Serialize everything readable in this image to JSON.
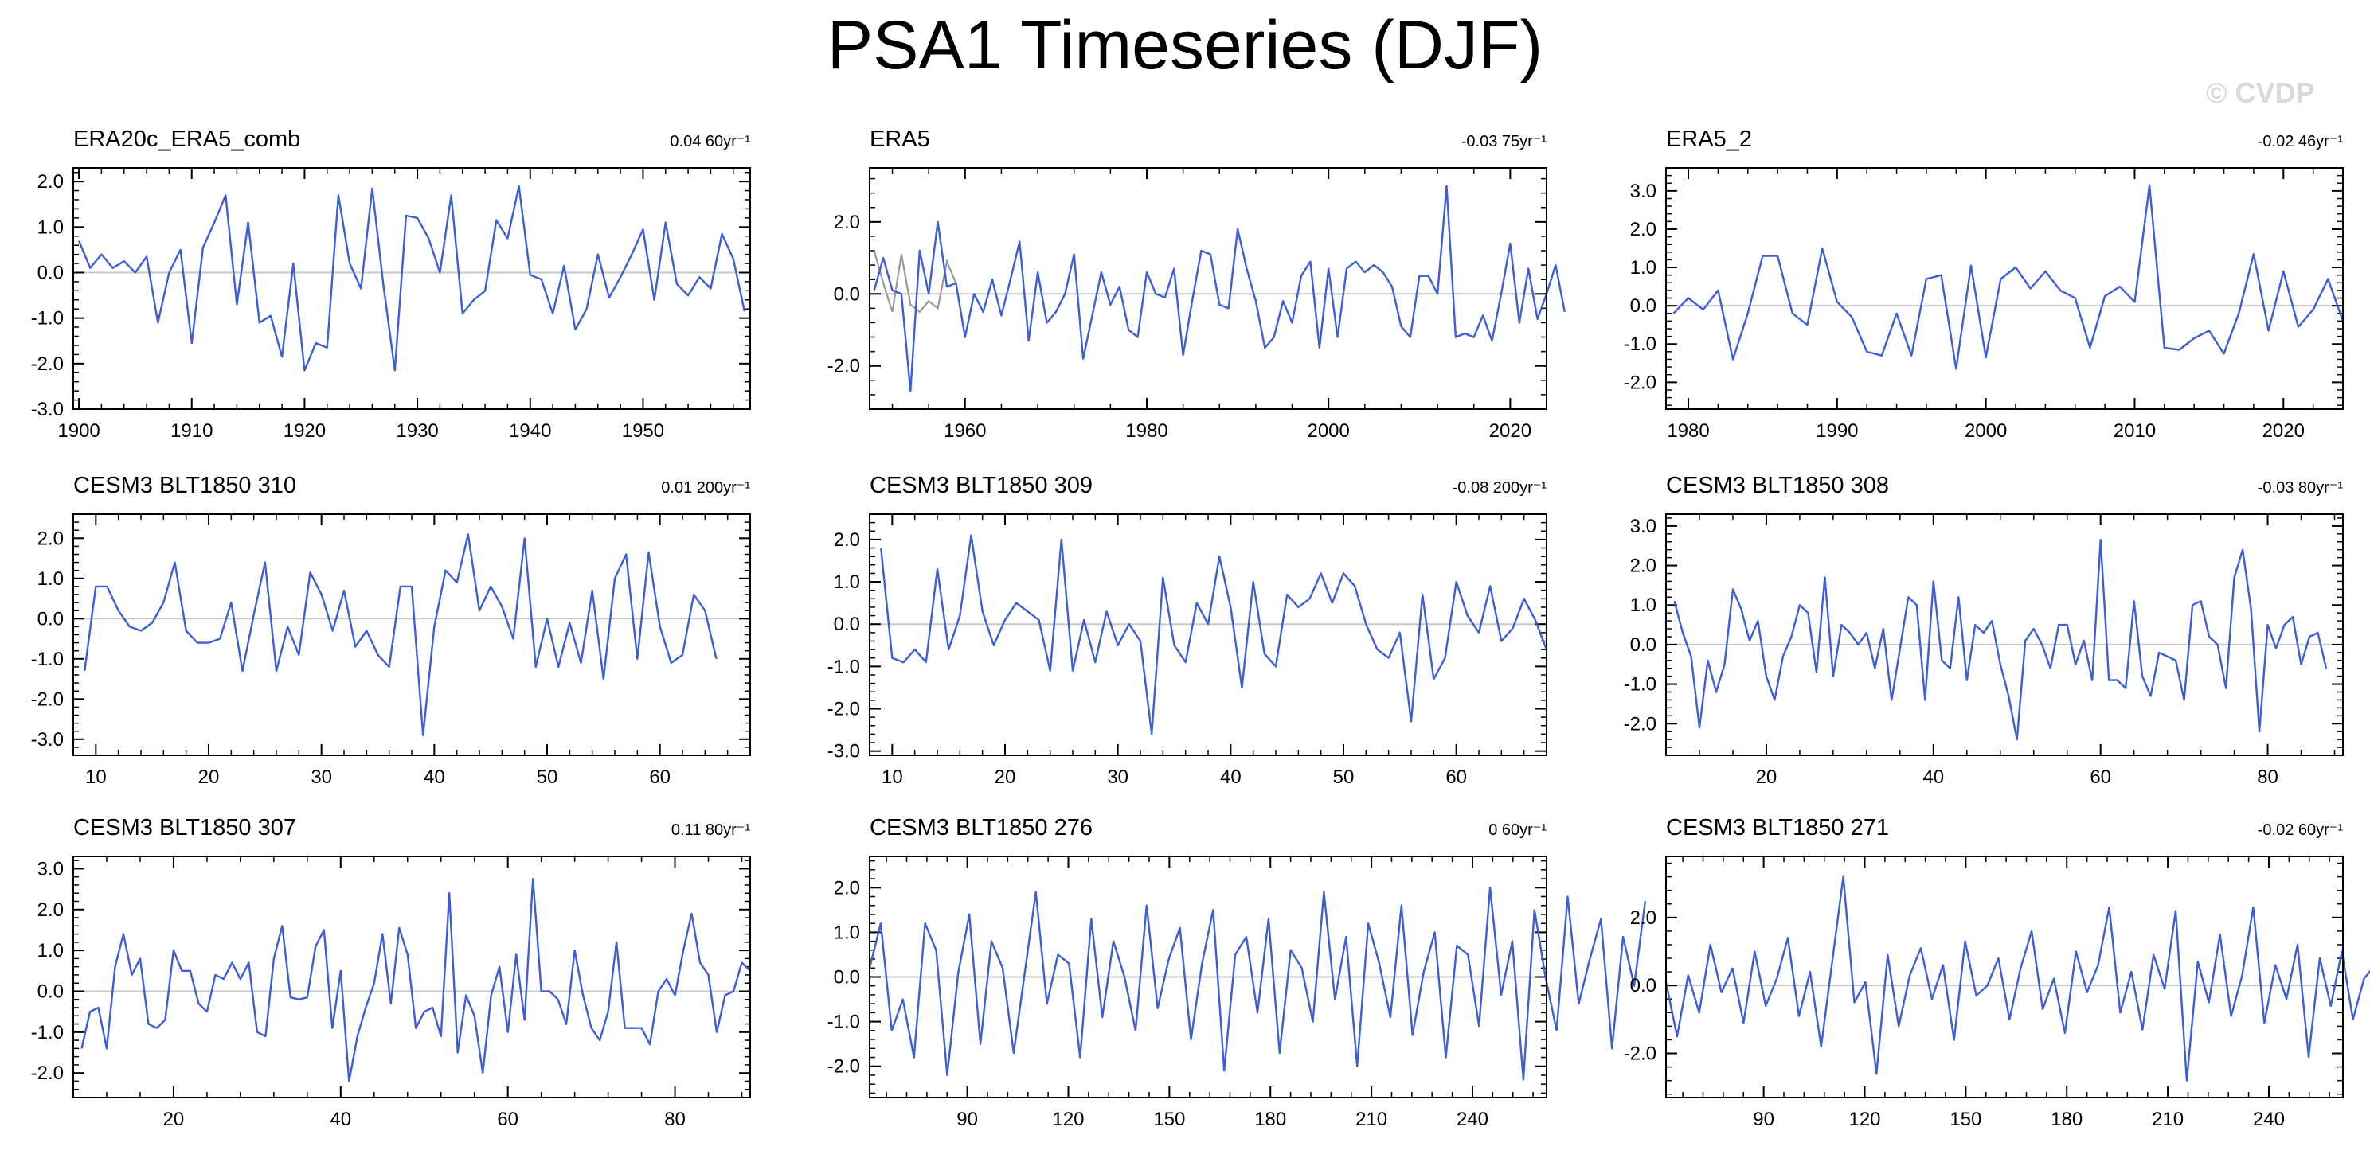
{
  "page": {
    "title": "PSA1 Timeseries (DJF)",
    "watermark": "© CVDP"
  },
  "colors": {
    "series": "#3d5ed8",
    "secondary_series": "#9a9a9a",
    "zero_line": "#c8c8c8",
    "frame": "#000000"
  },
  "chart_data": [
    {
      "type": "line",
      "title": "ERA20c_ERA5_comb",
      "trend_label": "0.04 60yr⁻¹",
      "xlim": [
        1899.5,
        1959.5
      ],
      "ylim": [
        -3.0,
        2.3
      ],
      "xticks": [
        1900,
        1910,
        1920,
        1930,
        1940,
        1950
      ],
      "yticks": [
        2.0,
        1.0,
        0.0,
        -1.0,
        -2.0,
        -3.0
      ],
      "ytick_labels": [
        "2.0",
        "1.0",
        "0.0",
        "-1.0",
        "-2.0",
        "-3.0"
      ],
      "x_start": 1900,
      "x_step": 1,
      "values": [
        0.7,
        0.1,
        0.4,
        0.1,
        0.25,
        0.0,
        0.35,
        -1.1,
        0.0,
        0.5,
        -1.55,
        0.55,
        1.1,
        1.7,
        -0.7,
        1.1,
        -1.1,
        -0.95,
        -1.85,
        0.2,
        -2.15,
        -1.55,
        -1.65,
        1.7,
        0.2,
        -0.35,
        1.85,
        -0.3,
        -2.15,
        1.25,
        1.2,
        0.75,
        0.0,
        1.7,
        -0.9,
        -0.6,
        -0.4,
        1.15,
        0.75,
        1.9,
        -0.05,
        -0.15,
        -0.9,
        0.15,
        -1.25,
        -0.8,
        0.4,
        -0.55,
        -0.1,
        0.4,
        0.95,
        -0.6,
        1.1,
        -0.25,
        -0.5,
        -0.1,
        -0.35,
        0.85,
        0.3,
        -0.85
      ]
    },
    {
      "type": "line",
      "title": "ERA5",
      "trend_label": "-0.03 75yr⁻¹",
      "xlim": [
        1949.5,
        2024
      ],
      "ylim": [
        -3.2,
        3.5
      ],
      "xticks": [
        1960,
        1980,
        2000,
        2020
      ],
      "yticks": [
        2.0,
        0.0,
        -2.0
      ],
      "ytick_labels": [
        "2.0",
        "0.0",
        "-2.0"
      ],
      "x_start": 1950,
      "x_step": 1,
      "values": [
        0.1,
        1.0,
        0.1,
        0.0,
        -2.7,
        1.2,
        0.0,
        2.0,
        0.2,
        0.3,
        -1.2,
        0.0,
        -0.5,
        0.4,
        -0.6,
        0.4,
        1.45,
        -1.3,
        0.6,
        -0.8,
        -0.5,
        0.0,
        1.1,
        -1.8,
        -0.6,
        0.6,
        -0.3,
        0.2,
        -1.0,
        -1.2,
        0.6,
        0.0,
        -0.1,
        0.7,
        -1.7,
        -0.2,
        1.2,
        1.1,
        -0.3,
        -0.4,
        1.8,
        0.7,
        -0.2,
        -1.5,
        -1.2,
        -0.2,
        -0.8,
        0.5,
        0.9,
        -1.5,
        0.7,
        -1.2,
        0.7,
        0.9,
        0.6,
        0.8,
        0.6,
        0.2,
        -0.9,
        -1.2,
        0.5,
        0.5,
        0.0,
        3.0,
        -1.2,
        -1.1,
        -1.2,
        -0.6,
        -1.3,
        0.0,
        1.4,
        -0.8,
        0.7,
        -0.7,
        0.0,
        0.8,
        -0.5
      ],
      "secondary_x_start": 1950,
      "secondary_values": [
        1.2,
        0.3,
        -0.5,
        1.1,
        -0.3,
        -0.5,
        -0.2,
        -0.4,
        0.9,
        0.3
      ]
    },
    {
      "type": "line",
      "title": "ERA5_2",
      "trend_label": "-0.02 46yr⁻¹",
      "xlim": [
        1978.5,
        2024
      ],
      "ylim": [
        -2.7,
        3.6
      ],
      "xticks": [
        1980,
        1990,
        2000,
        2010,
        2020
      ],
      "yticks": [
        3.0,
        2.0,
        1.0,
        0.0,
        -1.0,
        -2.0
      ],
      "ytick_labels": [
        "3.0",
        "2.0",
        "1.0",
        "0.0",
        "-1.0",
        "-2.0"
      ],
      "x_start": 1979,
      "x_step": 1,
      "values": [
        -0.2,
        0.2,
        -0.1,
        0.4,
        -1.4,
        -0.2,
        1.3,
        1.3,
        -0.2,
        -0.5,
        1.5,
        0.1,
        -0.3,
        -1.2,
        -1.3,
        -0.2,
        -1.3,
        0.7,
        0.8,
        -1.65,
        1.05,
        -1.35,
        0.7,
        1.0,
        0.45,
        0.9,
        0.4,
        0.2,
        -1.1,
        0.25,
        0.5,
        0.1,
        3.15,
        -1.1,
        -1.15,
        -0.85,
        -0.65,
        -1.25,
        -0.2,
        1.35,
        -0.65,
        0.9,
        -0.55,
        -0.1,
        0.7,
        -0.4
      ]
    },
    {
      "type": "line",
      "title": "CESM3 BLT1850 310",
      "trend_label": "0.01 200yr⁻¹",
      "xlim": [
        8,
        68
      ],
      "ylim": [
        -3.4,
        2.6
      ],
      "xticks": [
        10,
        20,
        30,
        40,
        50,
        60
      ],
      "yticks": [
        2.0,
        1.0,
        0.0,
        -1.0,
        -2.0,
        -3.0
      ],
      "ytick_labels": [
        "2.0",
        "1.0",
        "0.0",
        "-1.0",
        "-2.0",
        "-3.0"
      ],
      "x_start": 9,
      "x_step": 1,
      "values": [
        -1.3,
        0.8,
        0.8,
        0.2,
        -0.2,
        -0.3,
        -0.1,
        0.4,
        1.4,
        -0.3,
        -0.6,
        -0.6,
        -0.5,
        0.4,
        -1.3,
        0.1,
        1.4,
        -1.3,
        -0.2,
        -0.9,
        1.15,
        0.6,
        -0.3,
        0.7,
        -0.7,
        -0.3,
        -0.9,
        -1.2,
        0.8,
        0.8,
        -2.9,
        -0.2,
        1.2,
        0.9,
        2.1,
        0.2,
        0.8,
        0.3,
        -0.5,
        2.0,
        -1.2,
        0.0,
        -1.2,
        -0.1,
        -1.1,
        0.7,
        -1.5,
        1.0,
        1.6,
        -1.0,
        1.65,
        -0.2,
        -1.1,
        -0.9,
        0.6,
        0.2,
        -1.0
      ]
    },
    {
      "type": "line",
      "title": "CESM3 BLT1850 309",
      "trend_label": "-0.08 200yr⁻¹",
      "xlim": [
        8,
        68
      ],
      "ylim": [
        -3.1,
        2.6
      ],
      "xticks": [
        10,
        20,
        30,
        40,
        50,
        60
      ],
      "yticks": [
        2.0,
        1.0,
        0.0,
        -1.0,
        -2.0,
        -3.0
      ],
      "ytick_labels": [
        "2.0",
        "1.0",
        "0.0",
        "-1.0",
        "-2.0",
        "-3.0"
      ],
      "x_start": 9,
      "x_step": 1,
      "values": [
        1.8,
        -0.8,
        -0.9,
        -0.6,
        -0.9,
        1.3,
        -0.6,
        0.2,
        2.1,
        0.3,
        -0.5,
        0.1,
        0.5,
        0.3,
        0.1,
        -1.1,
        2.0,
        -1.1,
        0.1,
        -0.9,
        0.3,
        -0.5,
        0.0,
        -0.4,
        -2.6,
        1.1,
        -0.5,
        -0.9,
        0.5,
        0.0,
        1.6,
        0.4,
        -1.5,
        1.0,
        -0.7,
        -1.0,
        0.7,
        0.4,
        0.6,
        1.2,
        0.5,
        1.2,
        0.9,
        0.0,
        -0.6,
        -0.8,
        -0.2,
        -2.3,
        0.7,
        -1.3,
        -0.8,
        1.0,
        0.2,
        -0.2,
        0.9,
        -0.4,
        -0.1,
        0.6,
        0.1,
        -0.6
      ]
    },
    {
      "type": "line",
      "title": "CESM3 BLT1850 308",
      "trend_label": "-0.03 80yr⁻¹",
      "xlim": [
        8,
        89
      ],
      "ylim": [
        -2.8,
        3.3
      ],
      "xticks": [
        20,
        40,
        60,
        80
      ],
      "yticks": [
        3.0,
        2.0,
        1.0,
        0.0,
        -1.0,
        -2.0
      ],
      "ytick_labels": [
        "3.0",
        "2.0",
        "1.0",
        "0.0",
        "-1.0",
        "-2.0"
      ],
      "x_start": 9,
      "x_step": 1,
      "values": [
        1.1,
        0.3,
        -0.3,
        -2.1,
        -0.4,
        -1.2,
        -0.5,
        1.4,
        0.9,
        0.1,
        0.6,
        -0.8,
        -1.4,
        -0.3,
        0.2,
        1.0,
        0.8,
        -0.7,
        1.7,
        -0.8,
        0.5,
        0.3,
        0.0,
        0.3,
        -0.6,
        0.4,
        -1.4,
        -0.1,
        1.2,
        1.0,
        -1.4,
        1.6,
        -0.4,
        -0.6,
        1.2,
        -0.9,
        0.5,
        0.3,
        0.6,
        -0.5,
        -1.3,
        -2.4,
        0.1,
        0.4,
        0.0,
        -0.6,
        0.5,
        0.5,
        -0.5,
        0.1,
        -0.9,
        2.65,
        -0.9,
        -0.9,
        -1.1,
        1.1,
        -0.8,
        -1.3,
        -0.2,
        -0.3,
        -0.4,
        -1.4,
        1.0,
        1.1,
        0.2,
        0.0,
        -1.1,
        1.7,
        2.4,
        0.9,
        -2.2,
        0.5,
        -0.1,
        0.5,
        0.7,
        -0.5,
        0.2,
        0.3,
        -0.6
      ]
    },
    {
      "type": "line",
      "title": "CESM3 BLT1850 307",
      "trend_label": "0.11 80yr⁻¹",
      "xlim": [
        8,
        89
      ],
      "ylim": [
        -2.6,
        3.3
      ],
      "xticks": [
        20,
        40,
        60,
        80
      ],
      "yticks": [
        3.0,
        2.0,
        1.0,
        0.0,
        -1.0,
        -2.0
      ],
      "ytick_labels": [
        "3.0",
        "2.0",
        "1.0",
        "0.0",
        "-1.0",
        "-2.0"
      ],
      "x_start": 9,
      "x_step": 1,
      "values": [
        -1.4,
        -0.5,
        -0.4,
        -1.4,
        0.6,
        1.4,
        0.4,
        0.8,
        -0.8,
        -0.9,
        -0.7,
        1.0,
        0.5,
        0.5,
        -0.3,
        -0.5,
        0.4,
        0.3,
        0.7,
        0.3,
        0.7,
        -1.0,
        -1.1,
        0.8,
        1.6,
        -0.15,
        -0.2,
        -0.15,
        1.1,
        1.5,
        -0.9,
        0.5,
        -2.2,
        -1.1,
        -0.4,
        0.2,
        1.4,
        -0.3,
        1.55,
        0.9,
        -0.9,
        -0.5,
        -0.4,
        -1.1,
        2.4,
        -1.5,
        -0.1,
        -0.6,
        -2.0,
        -0.1,
        0.6,
        -1.0,
        0.9,
        -0.7,
        2.75,
        0.0,
        0.0,
        -0.2,
        -0.8,
        1.0,
        -0.1,
        -0.9,
        -1.2,
        -0.5,
        1.2,
        -0.9,
        -0.9,
        -0.9,
        -1.3,
        0.0,
        0.3,
        -0.1,
        1.0,
        1.9,
        0.7,
        0.4,
        -1.0,
        -0.1,
        0.0,
        0.7,
        0.5
      ]
    },
    {
      "type": "line",
      "title": "CESM3 BLT1850 276",
      "trend_label": "0 60yr⁻¹",
      "xlim": [
        61,
        262
      ],
      "ylim": [
        -2.7,
        2.7
      ],
      "xticks": [
        90,
        120,
        150,
        180,
        210,
        240
      ],
      "yticks": [
        2.0,
        1.0,
        0.0,
        -1.0,
        -2.0
      ],
      "ytick_labels": [
        "2.0",
        "1.0",
        "0.0",
        "-1.0",
        "-2.0"
      ],
      "x_start": 61,
      "x_step": 3.29,
      "values": [
        0.2,
        1.2,
        -1.2,
        -0.5,
        -1.8,
        1.2,
        0.6,
        -2.2,
        0.1,
        1.4,
        -1.5,
        0.8,
        0.2,
        -1.7,
        0.1,
        1.9,
        -0.6,
        0.5,
        0.3,
        -1.8,
        1.3,
        -0.9,
        0.8,
        0.0,
        -1.2,
        1.6,
        -0.7,
        0.4,
        1.1,
        -1.4,
        0.3,
        1.5,
        -2.1,
        0.5,
        0.9,
        -0.8,
        1.3,
        -1.7,
        0.6,
        0.2,
        -1.0,
        1.9,
        -0.5,
        0.9,
        -2.0,
        1.2,
        0.3,
        -0.9,
        1.6,
        -1.3,
        0.1,
        1.0,
        -1.8,
        0.7,
        0.5,
        -1.1,
        2.0,
        -0.4,
        0.8,
        -2.3,
        1.5,
        0.0,
        -1.2,
        1.8,
        -0.6,
        0.4,
        1.3,
        -1.6,
        0.9,
        -0.2,
        1.7
      ]
    },
    {
      "type": "line",
      "title": "CESM3 BLT1850 271",
      "trend_label": "-0.02 60yr⁻¹",
      "xlim": [
        61,
        262
      ],
      "ylim": [
        -3.3,
        3.8
      ],
      "xticks": [
        90,
        120,
        150,
        180,
        210,
        240
      ],
      "yticks": [
        2.0,
        0.0,
        -2.0
      ],
      "ytick_labels": [
        "2.0",
        "0.0",
        "-2.0"
      ],
      "x_start": 61,
      "x_step": 3.29,
      "values": [
        0.1,
        -1.5,
        0.3,
        -0.8,
        1.2,
        -0.2,
        0.5,
        -1.1,
        1.0,
        -0.6,
        0.2,
        1.4,
        -0.9,
        0.4,
        -1.8,
        0.7,
        3.2,
        -0.5,
        0.1,
        -2.6,
        0.9,
        -1.2,
        0.3,
        1.1,
        -0.4,
        0.6,
        -1.6,
        1.3,
        -0.3,
        0.0,
        0.8,
        -1.0,
        0.5,
        1.6,
        -0.7,
        0.2,
        -1.4,
        1.0,
        -0.2,
        0.6,
        2.3,
        -0.8,
        0.4,
        -1.3,
        0.9,
        -0.1,
        2.2,
        -2.8,
        0.7,
        -0.5,
        1.5,
        -0.9,
        0.3,
        2.3,
        -1.1,
        0.6,
        -0.4,
        1.2,
        -2.1,
        0.8,
        -0.6,
        1.0,
        -1.0,
        0.2,
        0.6,
        -1.2,
        0.0,
        0.5,
        -1.1,
        0.3,
        0.6
      ]
    }
  ]
}
